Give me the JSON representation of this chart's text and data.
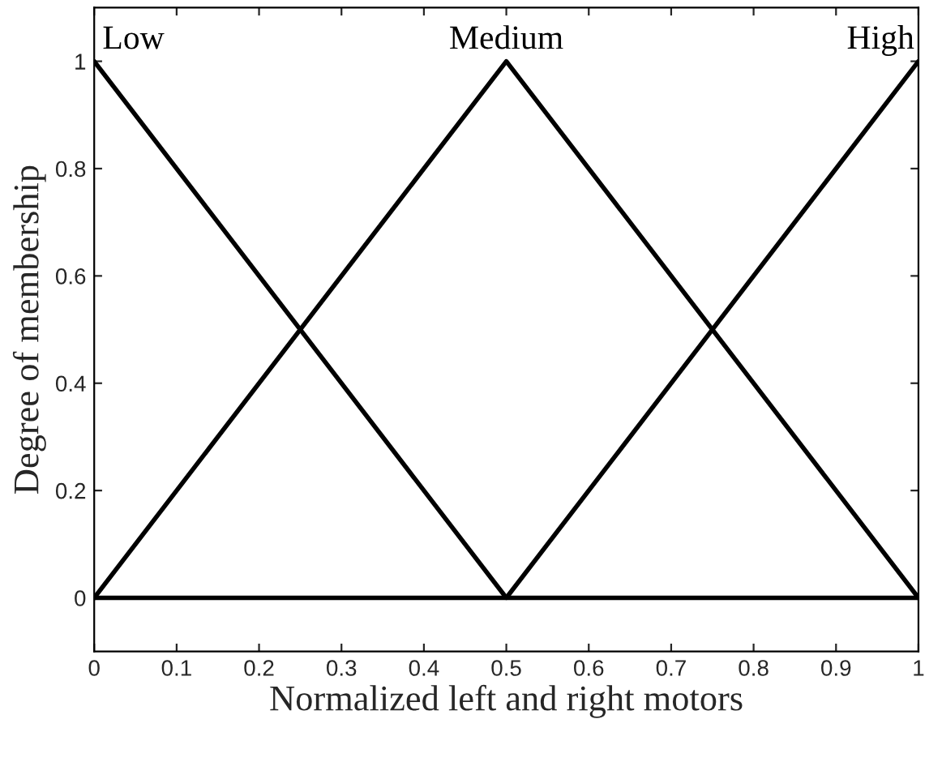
{
  "chart_data": {
    "type": "line",
    "xlabel": "Normalized left and right motors",
    "ylabel": "Degree of membership",
    "x": [
      0,
      0.5,
      1
    ],
    "series": [
      {
        "name": "Low",
        "color": "#000000",
        "values": [
          1,
          0,
          0
        ]
      },
      {
        "name": "Medium",
        "color": "#000000",
        "values": [
          0,
          1,
          0
        ]
      },
      {
        "name": "High",
        "color": "#000000",
        "values": [
          0,
          0,
          1
        ]
      }
    ],
    "xlim": [
      0,
      1
    ],
    "ylim": [
      -0.1,
      1.1
    ],
    "xticks": [
      0,
      0.1,
      0.2,
      0.3,
      0.4,
      0.5,
      0.6,
      0.7,
      0.8,
      0.9,
      1
    ],
    "yticks": [
      0,
      0.2,
      0.4,
      0.6,
      0.8,
      1
    ],
    "grid": false,
    "legend": false,
    "marker": "none",
    "line_style": "solid"
  }
}
